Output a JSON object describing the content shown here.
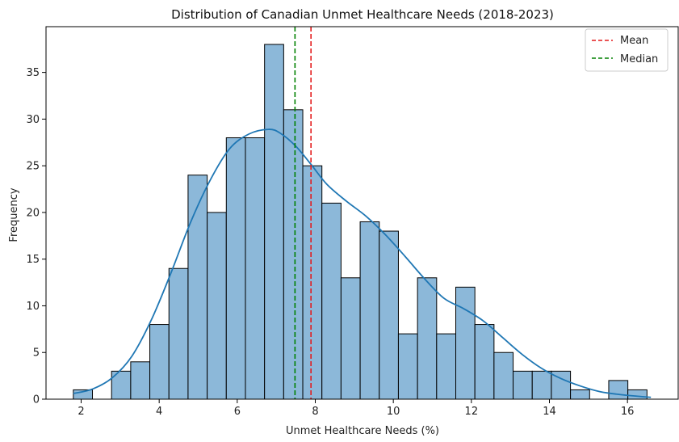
{
  "chart_data": {
    "type": "bar",
    "title": "Distribution of Canadian Unmet Healthcare Needs (2018-2023)",
    "xlabel": "Unmet Healthcare Needs (%)",
    "ylabel": "Frequency",
    "xlim": [
      1.1,
      17.3
    ],
    "ylim": [
      0,
      39.9
    ],
    "xticks": [
      2,
      4,
      6,
      8,
      10,
      12,
      14,
      16
    ],
    "yticks": [
      0,
      5,
      10,
      15,
      20,
      25,
      30,
      35
    ],
    "bin_edges": [
      1.8,
      2.29,
      2.78,
      3.27,
      3.76,
      4.25,
      4.74,
      5.23,
      5.72,
      6.21,
      6.7,
      7.19,
      7.68,
      8.17,
      8.66,
      9.15,
      9.64,
      10.13,
      10.62,
      11.11,
      11.6,
      12.09,
      12.58,
      13.07,
      13.56,
      14.05,
      14.54,
      15.03,
      15.52,
      16.01,
      16.5
    ],
    "counts": [
      1,
      0,
      3,
      4,
      8,
      14,
      24,
      20,
      28,
      28,
      38,
      31,
      25,
      21,
      13,
      19,
      18,
      7,
      13,
      7,
      12,
      8,
      5,
      3,
      3,
      3,
      1,
      0,
      2,
      1
    ],
    "kde": {
      "x": [
        1.8,
        2.3,
        2.8,
        3.3,
        3.8,
        4.3,
        4.8,
        5.3,
        5.8,
        6.3,
        6.8,
        7.1,
        7.5,
        7.9,
        8.3,
        8.8,
        9.3,
        9.8,
        10.3,
        10.8,
        11.3,
        11.8,
        12.3,
        12.8,
        13.3,
        13.8,
        14.3,
        14.8,
        15.3,
        15.8,
        16.3,
        16.6
      ],
      "y": [
        0.6,
        1.1,
        2.3,
        4.6,
        8.5,
        13.5,
        18.9,
        23.4,
        26.8,
        28.4,
        28.9,
        28.5,
        27.1,
        25.1,
        23.0,
        21.2,
        19.6,
        17.6,
        15.3,
        12.9,
        10.8,
        9.7,
        8.4,
        6.6,
        4.8,
        3.3,
        2.2,
        1.4,
        0.8,
        0.5,
        0.3,
        0.2
      ]
    },
    "mean": 7.89,
    "median": 7.48,
    "legend": [
      "Mean",
      "Median"
    ],
    "legend_position": "upper right",
    "colors": {
      "bar_fill": "#8cb8d9",
      "bar_edge": "#000000",
      "kde": "#1f77b4",
      "mean": "#e41a1c",
      "median": "#008000"
    }
  }
}
